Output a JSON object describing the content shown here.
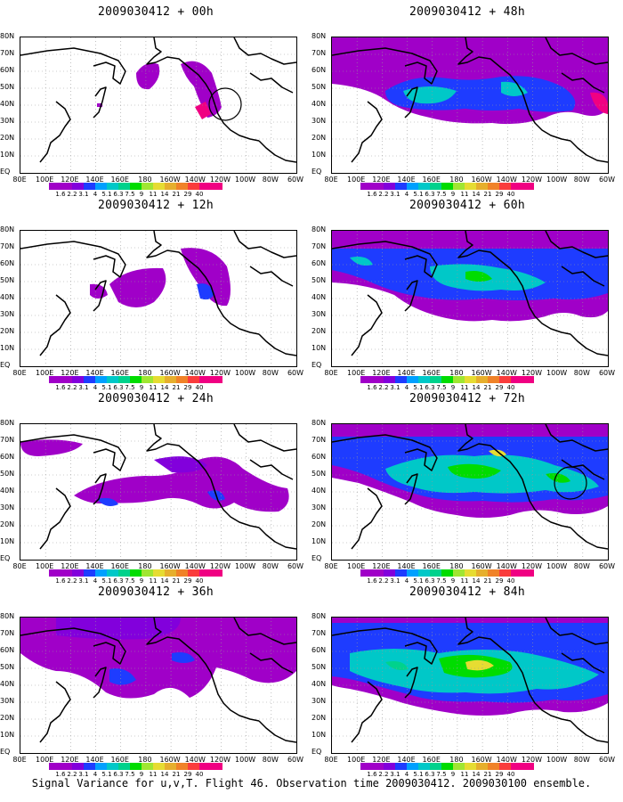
{
  "caption": "Signal Variance for u,v,T. Flight 46. Observation time 2009030412. 2009030100 ensemble.",
  "lat_labels": [
    "80N",
    "70N",
    "60N",
    "50N",
    "40N",
    "30N",
    "20N",
    "10N",
    "EQ"
  ],
  "lon_labels": [
    "80E",
    "100E",
    "120E",
    "140E",
    "160E",
    "180",
    "160W",
    "140W",
    "120W",
    "100W",
    "80W",
    "60W"
  ],
  "colorbar": {
    "levels": [
      "1.6",
      "2.2",
      "3.1",
      "4",
      "5.1",
      "6.3",
      "7.5",
      "9",
      "11",
      "14",
      "21",
      "29",
      "40"
    ],
    "colors": [
      "#a000c8",
      "#8200dc",
      "#1e3cff",
      "#00a0ff",
      "#00c8c8",
      "#00d28c",
      "#00dc00",
      "#a0e632",
      "#e6dc32",
      "#e6af2d",
      "#f08228",
      "#fa3c3c",
      "#f00082"
    ]
  },
  "panels": [
    {
      "id": "p00",
      "title": "2009030412 + 00h",
      "level": 0,
      "circle": [
        230,
        75
      ]
    },
    {
      "id": "p48",
      "title": "2009030412 + 48h",
      "level": 2,
      "circle": null
    },
    {
      "id": "p12",
      "title": "2009030412 + 12h",
      "level": 1,
      "circle": null
    },
    {
      "id": "p60",
      "title": "2009030412 + 60h",
      "level": 3,
      "circle": null
    },
    {
      "id": "p24",
      "title": "2009030412 + 24h",
      "level": 1,
      "circle": null
    },
    {
      "id": "p72",
      "title": "2009030412 + 72h",
      "level": 4,
      "circle": [
        268,
        66
      ]
    },
    {
      "id": "p36",
      "title": "2009030412 + 36h",
      "level": 2,
      "circle": null
    },
    {
      "id": "p84",
      "title": "2009030412 + 84h",
      "level": 4,
      "circle": null
    }
  ]
}
